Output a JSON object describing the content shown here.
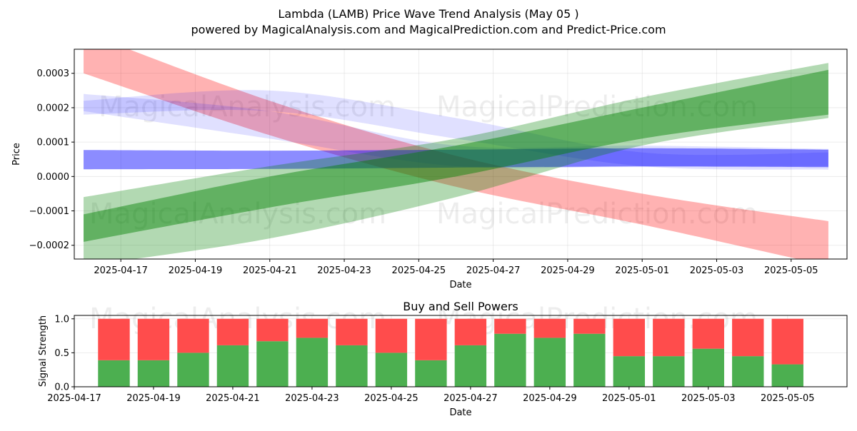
{
  "title_line1": "Lambda (LAMB) Price Wave Trend Analysis (May 05 )",
  "title_line2": "powered by MagicalAnalysis.com and MagicalPrediction.com and Predict-Price.com",
  "watermarks": [
    "MagicalAnalysis.com",
    "MagicalPrediction.com"
  ],
  "colors": {
    "red": "#ff0000",
    "blue": "#0000ff",
    "green": "#008000",
    "buy": "#4caf50",
    "sell": "#ff4c4c"
  },
  "chart_data": [
    {
      "type": "area",
      "title": "",
      "xlabel": "Date",
      "ylabel": "Price",
      "ylim": [
        -0.00024,
        0.00037
      ],
      "xlim": [
        "2025-04-15T18:00",
        "2025-05-06T12:00"
      ],
      "grid": true,
      "x_ticks": [
        "2025-04-17",
        "2025-04-19",
        "2025-04-21",
        "2025-04-23",
        "2025-04-25",
        "2025-04-27",
        "2025-04-29",
        "2025-05-01",
        "2025-05-03",
        "2025-05-05"
      ],
      "y_ticks": [
        "0.0003",
        "0.0002",
        "0.0001",
        "0.0000",
        "−0.0001",
        "−0.0002"
      ],
      "y_tick_values": [
        0.0003,
        0.0002,
        0.0001,
        0.0,
        -0.0001,
        -0.0002
      ],
      "series": [
        {
          "color": "red",
          "opacity": 0.3,
          "x": [
            "2025-04-16",
            "2025-04-21",
            "2025-04-26",
            "2025-05-01",
            "2025-05-06"
          ],
          "upper": [
            0.00042,
            0.00022,
            6e-05,
            -5e-05,
            -0.00013
          ],
          "lower": [
            0.0003,
            0.00012,
            -3e-05,
            -0.00014,
            -0.00026
          ]
        },
        {
          "color": "blue",
          "opacity": 0.12,
          "x": [
            "2025-04-16",
            "2025-04-21",
            "2025-04-26",
            "2025-05-01",
            "2025-05-06"
          ],
          "upper": [
            0.00024,
            0.00019,
            9e-05,
            9e-05,
            8e-05
          ],
          "lower": [
            0.00019,
            0.00011,
            3e-05,
            3e-05,
            3e-05
          ]
        },
        {
          "color": "blue",
          "opacity": 0.12,
          "x": [
            "2025-04-16",
            "2025-04-21",
            "2025-04-26",
            "2025-05-01",
            "2025-05-06"
          ],
          "upper": [
            0.00022,
            0.00025,
            0.00017,
            7e-05,
            7e-05
          ],
          "lower": [
            0.00018,
            0.00019,
            0.00011,
            3e-05,
            2e-05
          ]
        },
        {
          "color": "blue",
          "opacity": 0.45,
          "x": [
            "2025-04-16",
            "2025-04-21",
            "2025-04-26",
            "2025-05-01",
            "2025-05-06"
          ],
          "upper": [
            7.7e-05,
            7.5e-05,
            7.8e-05,
            8.2e-05,
            7.8e-05
          ],
          "lower": [
            2.1e-05,
            2.2e-05,
            2.6e-05,
            2.9e-05,
            2.7e-05
          ]
        },
        {
          "color": "green",
          "opacity": 0.3,
          "x": [
            "2025-04-16",
            "2025-04-21",
            "2025-04-26",
            "2025-05-01",
            "2025-05-06"
          ],
          "upper": [
            -6e-05,
            3e-05,
            0.00011,
            0.00023,
            0.00033
          ],
          "lower": [
            -0.00026,
            -0.00018,
            -6e-05,
            9e-05,
            0.00017
          ]
        },
        {
          "color": "green",
          "opacity": 0.45,
          "x": [
            "2025-04-16",
            "2025-04-21",
            "2025-04-26",
            "2025-05-01",
            "2025-05-06"
          ],
          "upper": [
            -0.00011,
            0.0,
            9e-05,
            0.0002,
            0.00031
          ],
          "lower": [
            -0.00019,
            -9e-05,
            0.0,
            0.00011,
            0.00018
          ]
        }
      ]
    },
    {
      "type": "bar",
      "title": "Buy and Sell Powers",
      "xlabel": "Date",
      "ylabel": "Signal Strength",
      "ylim": [
        0,
        1.05
      ],
      "xlim": [
        "2025-04-17T00:00",
        "2025-05-06T12:00"
      ],
      "grid": true,
      "x_ticks": [
        "2025-04-17",
        "2025-04-19",
        "2025-04-21",
        "2025-04-23",
        "2025-04-25",
        "2025-04-27",
        "2025-04-29",
        "2025-05-01",
        "2025-05-03",
        "2025-05-05"
      ],
      "y_ticks": [
        "0.0",
        "0.5",
        "1.0"
      ],
      "y_tick_values": [
        0.0,
        0.5,
        1.0
      ],
      "categories": [
        "2025-04-18",
        "2025-04-19",
        "2025-04-20",
        "2025-04-21",
        "2025-04-22",
        "2025-04-23",
        "2025-04-24",
        "2025-04-25",
        "2025-04-26",
        "2025-04-27",
        "2025-04-28",
        "2025-04-29",
        "2025-04-30",
        "2025-05-01",
        "2025-05-02",
        "2025-05-03",
        "2025-05-04",
        "2025-05-05"
      ],
      "buy": [
        0.39,
        0.39,
        0.5,
        0.61,
        0.67,
        0.72,
        0.61,
        0.5,
        0.39,
        0.61,
        0.78,
        0.72,
        0.78,
        0.45,
        0.45,
        0.56,
        0.45,
        0.33
      ],
      "sell": [
        0.61,
        0.61,
        0.5,
        0.39,
        0.33,
        0.28,
        0.39,
        0.5,
        0.61,
        0.39,
        0.22,
        0.28,
        0.22,
        0.55,
        0.55,
        0.44,
        0.55,
        0.67
      ]
    }
  ]
}
